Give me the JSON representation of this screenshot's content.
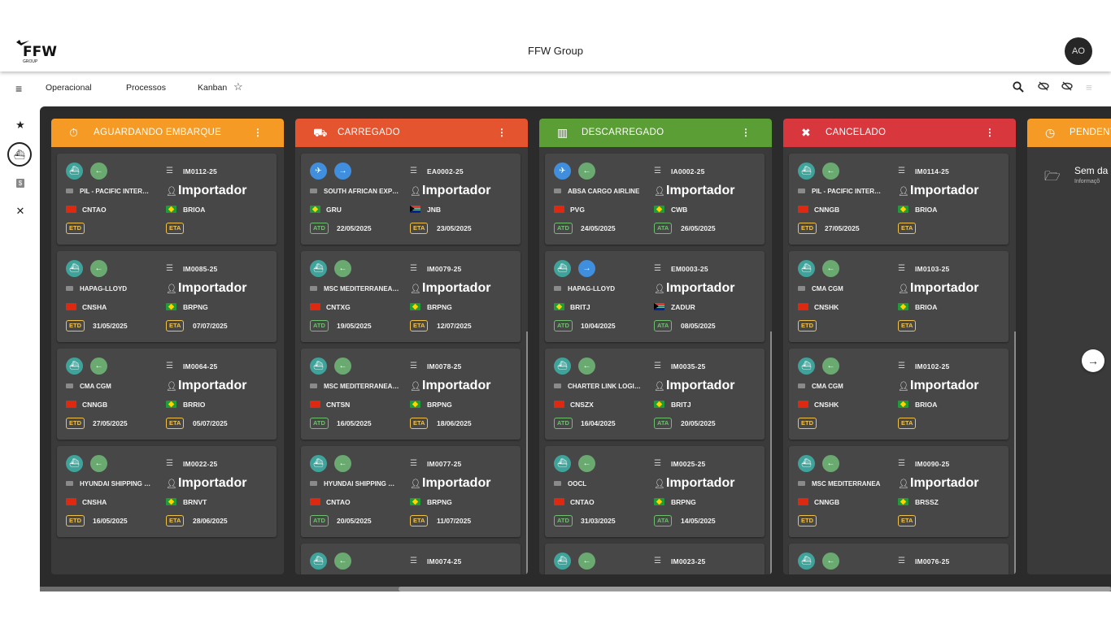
{
  "app": {
    "title": "FFW Group",
    "logo_text": "FFW",
    "logo_sub": "GROUP",
    "avatar": "AO"
  },
  "nav": {
    "menu_icon": "≡",
    "links": [
      "Operacional",
      "Processos",
      "Kanban"
    ],
    "favorite_icon": "☆",
    "right_icons": [
      "search-icon",
      "eye-off-icon",
      "eye-off-icon",
      "list-icon"
    ]
  },
  "rail": {
    "icons": [
      "star-icon",
      "ship-icon",
      "dollar-icon",
      "tools-icon"
    ],
    "dollar_label": "$"
  },
  "colors": {
    "aguardando": "#f59b25",
    "carregado": "#e4542f",
    "descarregado": "#5a9e35",
    "cancelado": "#d7373d",
    "pendente": "#f59b25",
    "badge_yellow": "#f0c24a",
    "badge_green": "#6ec06e"
  },
  "columns": [
    {
      "title": "AGUARDANDO EMBARQUE",
      "cards": [
        {
          "ref": "IM0112-25",
          "carrier": "PIL - PACIFIC INTER…",
          "role": "Importador",
          "origin": "CNTAO",
          "dest": "BRIOA",
          "badge_o": "ETD",
          "date_o": "",
          "badge_d": "ETA",
          "date_d": ""
        },
        {
          "ref": "IM0085-25",
          "carrier": "HAPAG-LLOYD",
          "role": "Importador",
          "origin": "CNSHA",
          "dest": "BRPNG",
          "badge_o": "ETD",
          "date_o": "31/05/2025",
          "badge_d": "ETA",
          "date_d": "07/07/2025"
        },
        {
          "ref": "IM0064-25",
          "carrier": "CMA CGM",
          "role": "Importador",
          "origin": "CNNGB",
          "dest": "BRRIO",
          "badge_o": "ETD",
          "date_o": "27/05/2025",
          "badge_d": "ETA",
          "date_d": "05/07/2025"
        },
        {
          "ref": "IM0022-25",
          "carrier": "HYUNDAI SHIPPING …",
          "role": "Importador",
          "origin": "CNSHA",
          "dest": "BRNVT",
          "badge_o": "ETD",
          "date_o": "16/05/2025",
          "badge_d": "ETA",
          "date_d": "28/06/2025"
        }
      ]
    },
    {
      "title": "CARREGADO",
      "cards": [
        {
          "ref": "EA0002-25",
          "carrier": "SOUTH AFRICAN EXP…",
          "role": "Importador",
          "origin": "GRU",
          "dest": "JNB",
          "badge_o": "ATD",
          "date_o": "22/05/2025",
          "badge_d": "ETA",
          "date_d": "23/05/2025"
        },
        {
          "ref": "IM0079-25",
          "carrier": "MSC MEDITERRANEA…",
          "role": "Importador",
          "origin": "CNTXG",
          "dest": "BRPNG",
          "badge_o": "ATD",
          "date_o": "19/05/2025",
          "badge_d": "ETA",
          "date_d": "12/07/2025"
        },
        {
          "ref": "IM0078-25",
          "carrier": "MSC MEDITERRANEA…",
          "role": "Importador",
          "origin": "CNTSN",
          "dest": "BRPNG",
          "badge_o": "ATD",
          "date_o": "16/05/2025",
          "badge_d": "ETA",
          "date_d": "18/06/2025"
        },
        {
          "ref": "IM0077-25",
          "carrier": "HYUNDAI SHIPPING …",
          "role": "Importador",
          "origin": "CNTAO",
          "dest": "BRPNG",
          "badge_o": "ATD",
          "date_o": "20/05/2025",
          "badge_d": "ETA",
          "date_d": "11/07/2025"
        },
        {
          "ref": "IM0074-25"
        }
      ]
    },
    {
      "title": "DESCARREGADO",
      "cards": [
        {
          "ref": "IA0002-25",
          "carrier": "ABSA CARGO AIRLINE",
          "role": "Importador",
          "origin": "PVG",
          "dest": "CWB",
          "badge_o": "ATD",
          "date_o": "24/05/2025",
          "badge_d": "ATA",
          "date_d": "26/05/2025"
        },
        {
          "ref": "EM0003-25",
          "carrier": "HAPAG-LLOYD",
          "role": "Importador",
          "origin": "BRITJ",
          "dest": "ZADUR",
          "badge_o": "ATD",
          "date_o": "10/04/2025",
          "badge_d": "ATA",
          "date_d": "08/05/2025"
        },
        {
          "ref": "IM0035-25",
          "carrier": "CHARTER LINK LOGI…",
          "role": "Importador",
          "origin": "CNSZX",
          "dest": "BRITJ",
          "badge_o": "ATD",
          "date_o": "16/04/2025",
          "badge_d": "ATA",
          "date_d": "20/05/2025"
        },
        {
          "ref": "IM0025-25",
          "carrier": "OOCL",
          "role": "Importador",
          "origin": "CNTAO",
          "dest": "BRPNG",
          "badge_o": "ATD",
          "date_o": "31/03/2025",
          "badge_d": "ATA",
          "date_d": "14/05/2025"
        },
        {
          "ref": "IM0023-25"
        }
      ]
    },
    {
      "title": "CANCELADO",
      "cards": [
        {
          "ref": "IM0114-25",
          "carrier": "PIL - PACIFIC INTER…",
          "role": "Importador",
          "origin": "CNNGB",
          "dest": "BRIOA",
          "badge_o": "ETD",
          "date_o": "27/05/2025",
          "badge_d": "ETA",
          "date_d": ""
        },
        {
          "ref": "IM0103-25",
          "carrier": "CMA CGM",
          "role": "Importador",
          "origin": "CNSHK",
          "dest": "BRIOA",
          "badge_o": "ETD",
          "date_o": "",
          "badge_d": "ETA",
          "date_d": ""
        },
        {
          "ref": "IM0102-25",
          "carrier": "CMA CGM",
          "role": "Importador",
          "origin": "CNSHK",
          "dest": "BRIOA",
          "badge_o": "ETD",
          "date_o": "",
          "badge_d": "ETA",
          "date_d": ""
        },
        {
          "ref": "IM0090-25",
          "carrier": "MSC MEDITERRANEA",
          "role": "Importador",
          "origin": "CNNGB",
          "dest": "BRSSZ",
          "badge_o": "ETD",
          "date_o": "",
          "badge_d": "ETA",
          "date_d": ""
        },
        {
          "ref": "IM0076-25"
        }
      ]
    },
    {
      "title": "PENDENT",
      "empty_title": "Sem da",
      "empty_sub": "Informaçõ"
    }
  ]
}
